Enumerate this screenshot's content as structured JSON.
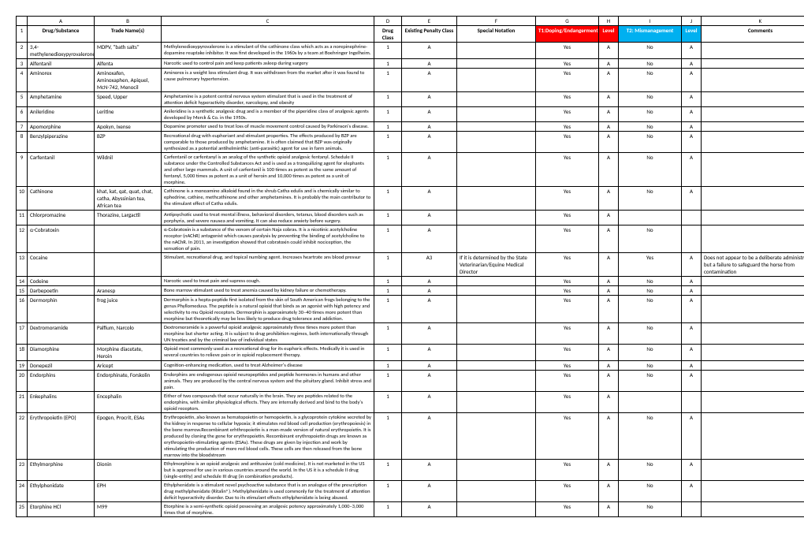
{
  "colLetters": [
    "A",
    "B",
    "C",
    "D",
    "E",
    "F",
    "G",
    "H",
    "I",
    "J",
    "K"
  ],
  "headers": {
    "drug": "Drug/Substance",
    "trade": "Trade Name(s)",
    "desc": "",
    "class": "Drug Class",
    "penalty": "Existing Penalty Class",
    "notation": "Special Notation",
    "t1": "T1:Doping/Endangerment",
    "lvl1": "Level",
    "t2": "T2: Mismanagement",
    "lvl2": "Level",
    "comments": "Comments"
  },
  "rows": [
    {
      "n": "2",
      "drug": "3,4-methylenedioxypyrovalerone",
      "trade": "MDPV, \"bath salts\"",
      "desc": "Methylenedioxypyrovalerone is a stimulant of the cathinone class which acts as a norepinephrine-dopamine reuptake inhibitor. It was first developed in the 1960s by a team at Boehringer Ingelheim.",
      "cls": "1",
      "pen": "A",
      "not": "",
      "t1": "Yes",
      "l1": "A",
      "t2": "No",
      "l2": "A",
      "com": ""
    },
    {
      "n": "3",
      "drug": "Alfentanil",
      "trade": "Alfenta",
      "desc": "Narcotic used to control pain and keep patients asleep during surgery",
      "cls": "1",
      "pen": "A",
      "not": "",
      "t1": "Yes",
      "l1": "A",
      "t2": "No",
      "l2": "A",
      "com": ""
    },
    {
      "n": "4",
      "drug": "Aminorex",
      "trade": "Aminoxafen, Aminoxaphen, Apiquel, McN-742, Menocil",
      "desc": "Aminorex is a weight loss stimulant drug. It was withdrawn from the market after it was found to cause pulmonary hypertension.",
      "cls": "1",
      "pen": "A",
      "not": "",
      "t1": "Yes",
      "l1": "A",
      "t2": "No",
      "l2": "A",
      "com": ""
    },
    {
      "n": "5",
      "drug": "Amphetamine",
      "trade": "Speed, Upper",
      "desc": "Amphetamine is a potent central nervous system stimulant that is used in the treatment of attention deficit hyperactivity disorder, narcolepsy, and obesity",
      "cls": "1",
      "pen": "A",
      "not": "",
      "t1": "Yes",
      "l1": "A",
      "t2": "No",
      "l2": "A",
      "com": ""
    },
    {
      "n": "6",
      "drug": "Anileridine",
      "trade": "Leritine",
      "desc": "Anileridine is a synthetic analgesic drug and is a member of the piperidine class of analgesic agents developed by Merck & Co. in the 1950s.",
      "cls": "1",
      "pen": "A",
      "not": "",
      "t1": "Yes",
      "l1": "A",
      "t2": "No",
      "l2": "A",
      "com": ""
    },
    {
      "n": "7",
      "drug": "Apomorphine",
      "trade": "Apokyn, Ixense",
      "desc": "Dopamine promoter used to treat loss of muscle movement control caused by Parkinson's disease.",
      "cls": "1",
      "pen": "A",
      "not": "",
      "t1": "Yes",
      "l1": "A",
      "t2": "No",
      "l2": "A",
      "com": ""
    },
    {
      "n": "8",
      "drug": "Benzylpiperazine",
      "trade": "BZP",
      "desc": "Recreational drug with euphoriant and stimulant properties. The effects produced by BZP are comparable to those produced by amphetamine. It is often claimed that BZP was originally synthesized as a potential antihelminthic (anti-parasitic) agent for use in farm animals.",
      "cls": "1",
      "pen": "A",
      "not": "",
      "t1": "Yes",
      "l1": "A",
      "t2": "No",
      "l2": "A",
      "com": ""
    },
    {
      "n": "9",
      "drug": "Carfentanil",
      "trade": "Wildnil",
      "desc": "Carfentanil or carfentanyl is an analog of the synthetic opioid analgesic fentanyl. Schedule II substance under the Controlled Substances Act and is used as a tranquilizing agent for elephants and other large mammals. A unit of carfentanil is 100 times as potent as the same amount of fentanyl, 5,000 times as potent as a unit of heroin and 10,000 times as potent as a unit of morphine.",
      "cls": "1",
      "pen": "A",
      "not": "",
      "t1": "Yes",
      "l1": "A",
      "t2": "No",
      "l2": "A",
      "com": ""
    },
    {
      "n": "10",
      "drug": "Cathinone",
      "trade": "khat, kat, qat, quat, chat, catha, Abyssinian tea, African tea",
      "desc": "Cathinone is a monoamine alkaloid found in the shrub Catha edulis and is chemically similar to ephedrine, cathine, methcathinone and other amphetamines. It is probably the main contributor to the stimulant effect of Catha edulis.",
      "cls": "1",
      "pen": "A",
      "not": "",
      "t1": "Yes",
      "l1": "A",
      "t2": "No",
      "l2": "A",
      "com": ""
    },
    {
      "n": "11",
      "drug": "Chlorpromazine",
      "trade": "Thorazine, Largactil",
      "desc": "Antipsychotic used to treat mental illness, behavioral disorders, tetanus, blood disorders such as porphyria, and severe nausea and vomiting. It can also reduce anxiety before surgery.",
      "cls": "1",
      "pen": "A",
      "not": "",
      "t1": "Yes",
      "l1": "A",
      "t2": "",
      "l2": "",
      "com": ""
    },
    {
      "n": "12",
      "drug": "α-Cobratoxin",
      "trade": "",
      "desc": "α-Cobratoxin is a substance of the venom of certain Naja cobras. It is a nicotinic acetylcholine receptor (nAChR) antagonist which causes paralysis by preventing the binding of acetylcholine to the nAChR. In 2011, an investigation showed that cobratoxin could inhibit nociception, the sensation of pain.",
      "cls": "1",
      "pen": "A",
      "not": "",
      "t1": "Yes",
      "l1": "A",
      "t2": "No",
      "l2": "",
      "com": ""
    },
    {
      "n": "13",
      "drug": "Cocaine",
      "trade": "",
      "desc": "Stimulant, recreational drug, and topical numbing agent. Increases heartrate ans blood pressur",
      "cls": "1",
      "pen": "A3",
      "not": "If it is determined by the State Veterinarian/Equine Medical Director",
      "t1": "Yes",
      "l1": "A",
      "t2": "Yes",
      "l2": "A",
      "com": "Does not appear to be a deliberate administration but a failure to safeguard the horse from contamination"
    },
    {
      "n": "14",
      "drug": "Codeine",
      "trade": "",
      "desc": "Narcotic used to  treat pain and supress cough.",
      "cls": "1",
      "pen": "A",
      "not": "",
      "t1": "Yes",
      "l1": "A",
      "t2": "No",
      "l2": "A",
      "com": ""
    },
    {
      "n": "15",
      "drug": "Darbepoetin",
      "trade": "Aranesp",
      "desc": "Bone marrow stimulant used to treat anemia caused by kidney failure or chemotherapy.",
      "cls": "1",
      "pen": "A",
      "not": "",
      "t1": "Yes",
      "l1": "A",
      "t2": "No",
      "l2": "A",
      "com": ""
    },
    {
      "n": "16",
      "drug": "Dermorphin",
      "trade": "frog juice",
      "desc": "Dermorphin is a hepta-peptide first isolated from the skin of South American frogs belonging to the genus Phyllomedusa. The peptide is a natural opioid that binds as an agonist with high potency and selectivity to mu Opioid receptors.  Dermorphin is approximately 30–40 times more potent than morphine but theoretically may be less likely to produce drug tolerance and addiction.",
      "cls": "1",
      "pen": "A",
      "not": "",
      "t1": "Yes",
      "l1": "A",
      "t2": "No",
      "l2": "A",
      "com": ""
    },
    {
      "n": "17",
      "drug": "Dextromoramide",
      "trade": "Palfium, Narcolo",
      "desc": "Dextromoramide is a powerful opioid analgesic approximately three times more potent than morphine but shorter acting. It is subject to drug prohibition regimes, both internationally through UN treaties and by the criminal law of individual states",
      "cls": "1",
      "pen": "A",
      "not": "",
      "t1": "Yes",
      "l1": "A",
      "t2": "No",
      "l2": "A",
      "com": ""
    },
    {
      "n": "18",
      "drug": "Diamorphine",
      "trade": "Morphine diacetate, Heroin",
      "desc": "Opioid most commonly used as a recreational drug for its euphoric effects. Medically it is used in several countries to relieve pain or in opioid replacement therapy.",
      "cls": "1",
      "pen": "A",
      "not": "",
      "t1": "Yes",
      "l1": "A",
      "t2": "No",
      "l2": "A",
      "com": ""
    },
    {
      "n": "19",
      "drug": "Donepezil",
      "trade": "Aricept",
      "desc": "Cognition-enhancing medication, used to treat Alzheimer's disease",
      "cls": "1",
      "pen": "A",
      "not": "",
      "t1": "Yes",
      "l1": "A",
      "t2": "No",
      "l2": "A",
      "com": ""
    },
    {
      "n": "20",
      "drug": "Endorphins",
      "trade": "Endorphinate, Forskolin",
      "desc": "Endorphins are endogenous opioid neuropeptides and peptide hormones in humans and other animals. They are produced by the central nervous system and the pituitary gland. Inhibit stress and pain.",
      "cls": "1",
      "pen": "A",
      "not": "",
      "t1": "Yes",
      "l1": "A",
      "t2": "No",
      "l2": "A",
      "com": ""
    },
    {
      "n": "21",
      "drug": "Enkephalins",
      "trade": "Encephalin",
      "desc": "Either of two compounds that occur naturally in the brain. They are peptides related to the endorphins, with similar physiological effects.  They are internally derived and bind to the body's opioid receptors.",
      "cls": "1",
      "pen": "A",
      "not": "",
      "t1": "Yes",
      "l1": "A",
      "t2": "",
      "l2": "",
      "com": ""
    },
    {
      "n": "22",
      "drug": "Erythropoietin (EPO)",
      "trade": "Epogen, Procrit, ESAs",
      "desc": "Erythropoietin, also known as hematopoietin or hemopoietin, is a glycoprotein cytokine secreted by the kidney in response to cellular hypoxia; it stimulates red blood cell production (erythropoiesis) in the bone marrow.Recombinant  erhthropoietin is a man-made version of natural erythropoietin. It is produced by cloning the gene for erythropoietin. Recombinant erythropoietin drugs are known as erythropoietin-stimulating agents (ESAs). These drugs are given by injection and work by stimulating the production of more red blood cells. These cells are then released from the bone marrow into the bloodstream",
      "cls": "1",
      "pen": "A",
      "not": "",
      "t1": "Yes",
      "l1": "A",
      "t2": "No",
      "l2": "A",
      "com": ""
    },
    {
      "n": "23",
      "drug": "Ethylmorphine",
      "trade": "Dionin",
      "desc": "Ethylmorphine is an opioid analgesic and antitussive (cold medicine).  It is not marketed in the US but is approved for use in various countries around the world. In the US it is a schedule II drug (single-entity) and schedule III drug (in combination products).",
      "cls": "1",
      "pen": "A",
      "not": "",
      "t1": "Yes",
      "l1": "A",
      "t2": "No",
      "l2": "A",
      "com": ""
    },
    {
      "n": "24",
      "drug": "Ethylphenidate",
      "trade": "EPH",
      "desc": "Ethylphenidate is a stimulant novel psychoactive substance that is an analogue of the prescription drug methylphenidate (Ritalin®). Methylphenidate is used commonly for the treatment of attention deficit hyperactivity disorder. Due to its stimulant effects ethylphenidate is being abused.",
      "cls": "1",
      "pen": "A",
      "not": "",
      "t1": "Yes",
      "l1": "A",
      "t2": "No",
      "l2": "A",
      "com": ""
    },
    {
      "n": "25",
      "drug": "Etorphine HCl",
      "trade": "M99",
      "desc": "Etorphine is a semi-synthetic opioid possessing an analgesic potency approximately 1,000–3,000 times that of morphine.",
      "cls": "1",
      "pen": "A",
      "not": "",
      "t1": "Yes",
      "l1": "A",
      "t2": "No",
      "l2": "",
      "com": ""
    }
  ]
}
